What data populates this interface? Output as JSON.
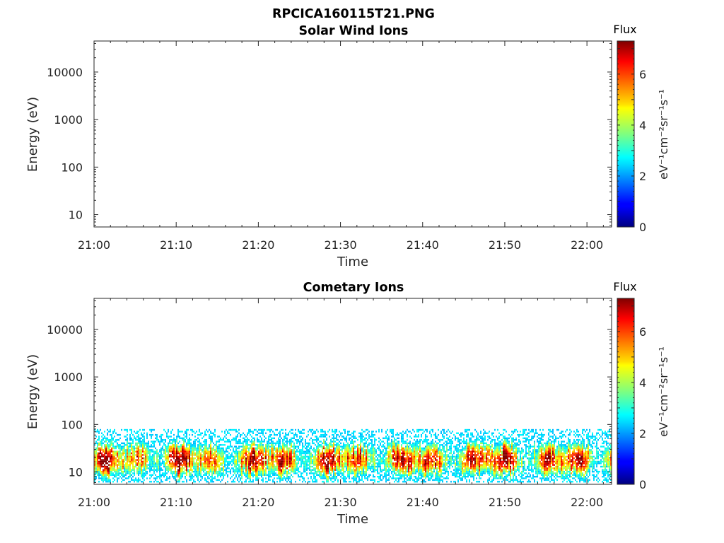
{
  "figure": {
    "title": "RPCICA160115T21.PNG"
  },
  "chart_data": [
    {
      "type": "heatmap",
      "title": "Solar Wind Ions",
      "xlabel": "Time",
      "ylabel": "Energy (eV)",
      "x_ticks": [
        "21:00",
        "21:10",
        "21:20",
        "21:30",
        "21:40",
        "21:50",
        "22:00"
      ],
      "x_range": [
        "21:00",
        "22:03"
      ],
      "y_scale": "log",
      "y_ticks": [
        "10",
        "10000",
        "1000",
        "100"
      ],
      "y_tick_values": [
        10,
        10000,
        1000,
        100
      ],
      "y_range": [
        5.5,
        45000
      ],
      "colorbar": {
        "title": "Flux",
        "label": "eV⁻¹cm⁻²sr⁻¹s⁻¹",
        "ticks": [
          "0",
          "2",
          "4",
          "6"
        ],
        "tick_values": [
          0,
          2,
          4,
          6
        ],
        "range": [
          0,
          7.3
        ],
        "colormap": "jet"
      },
      "data": "empty"
    },
    {
      "type": "heatmap",
      "title": "Cometary Ions",
      "xlabel": "Time",
      "ylabel": "Energy (eV)",
      "x_ticks": [
        "21:00",
        "21:10",
        "21:20",
        "21:30",
        "21:40",
        "21:50",
        "22:00"
      ],
      "x_range": [
        "21:00",
        "22:03"
      ],
      "y_scale": "log",
      "y_ticks": [
        "10",
        "10000",
        "1000",
        "100"
      ],
      "y_tick_values": [
        10,
        10000,
        1000,
        100
      ],
      "y_range": [
        5.5,
        45000
      ],
      "colorbar": {
        "title": "Flux",
        "label": "eV⁻¹cm⁻²sr⁻¹s⁻¹",
        "ticks": [
          "0",
          "2",
          "4",
          "6"
        ],
        "tick_values": [
          0,
          2,
          4,
          6
        ],
        "range": [
          0,
          7.3
        ],
        "colormap": "jet"
      },
      "data": {
        "energy_range_eV": [
          6,
          80
        ],
        "peak_energy_eV": 18,
        "peak_flux": 6.8,
        "typical_flux_band": [
          3.5,
          7
        ],
        "fill": "noisy spectrogram band across entire time range"
      }
    }
  ]
}
